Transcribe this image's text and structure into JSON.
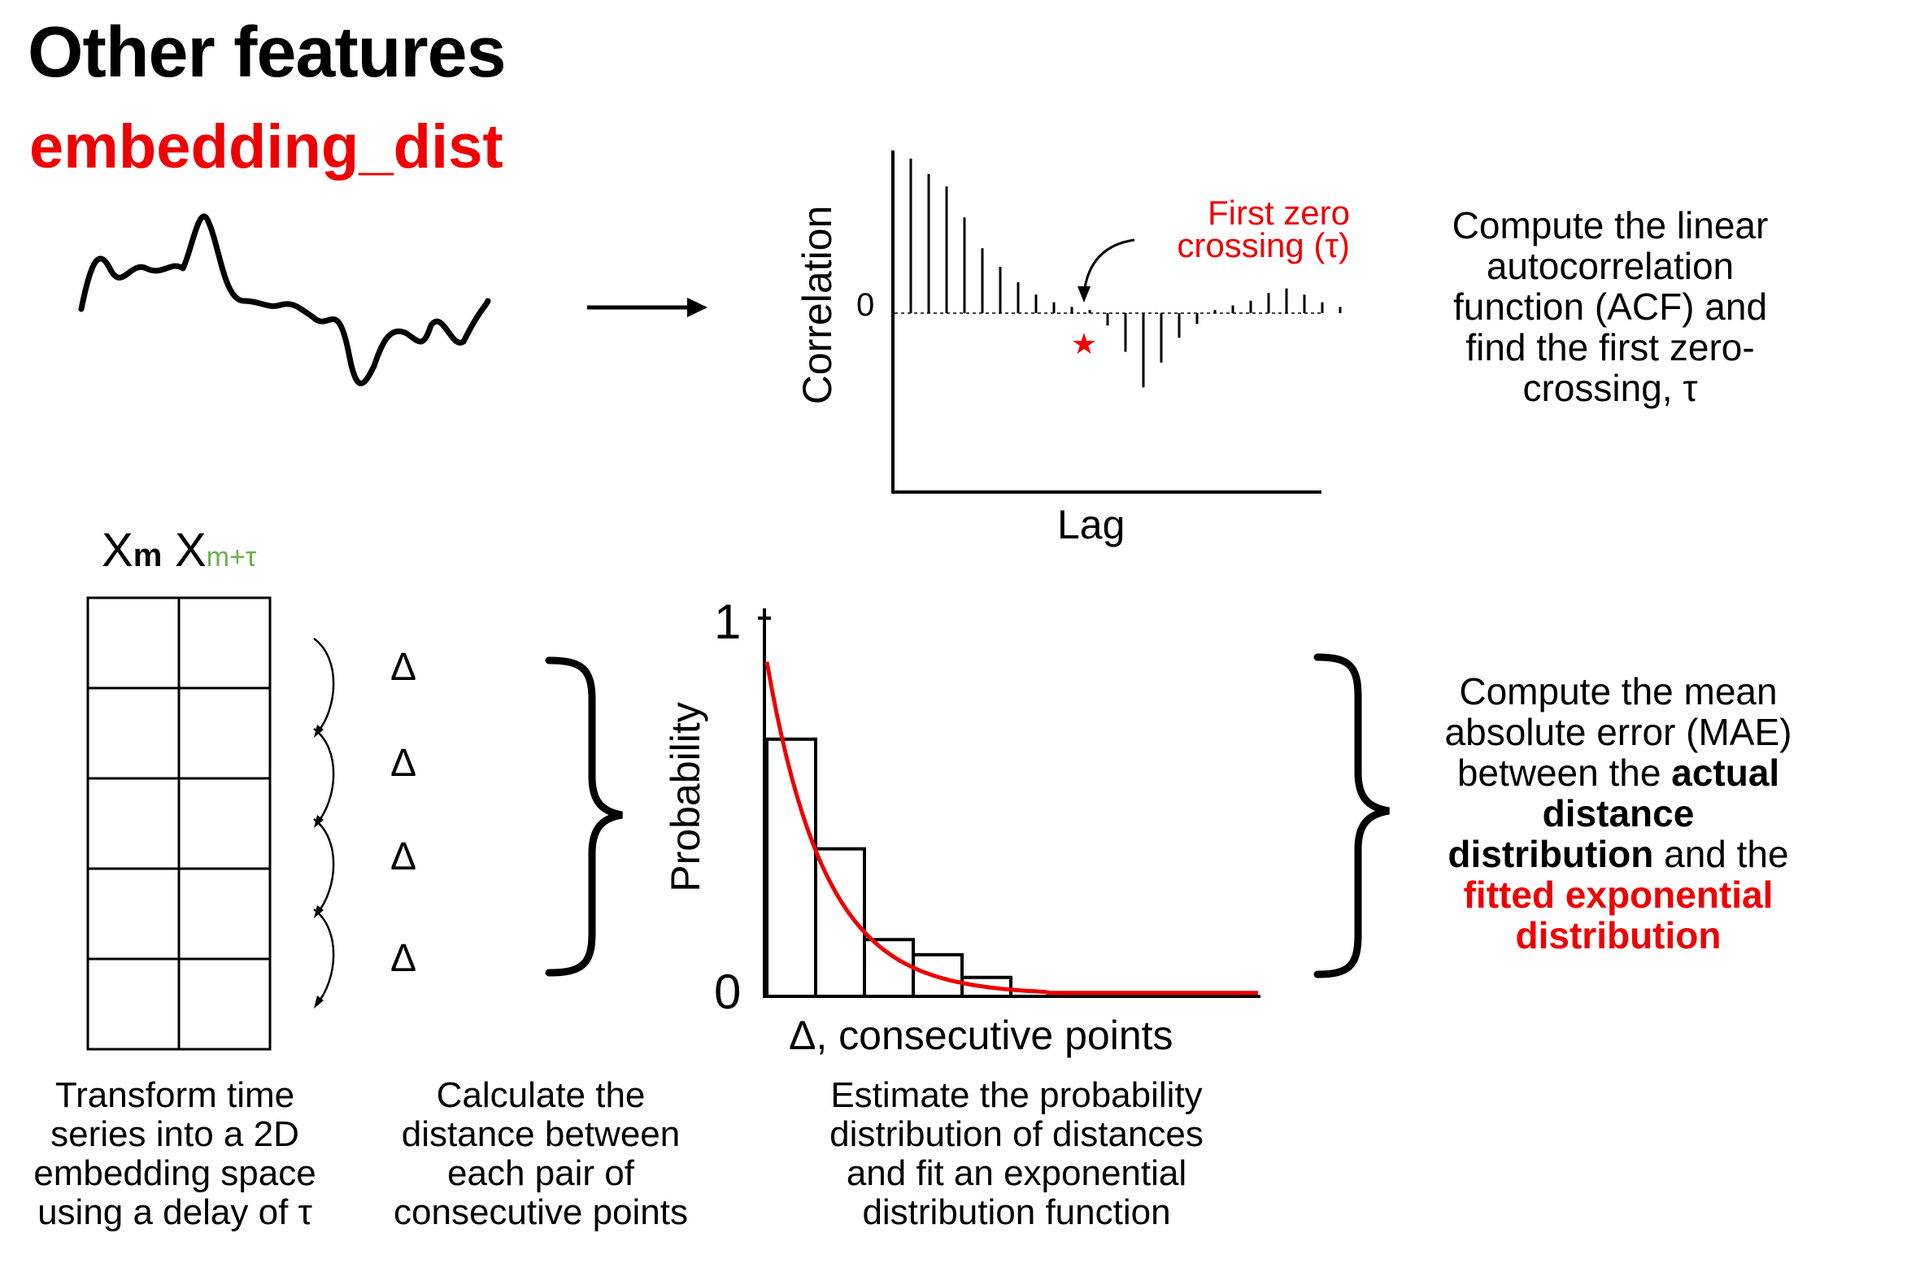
{
  "header": {
    "title": "Other features",
    "subtitle": "embedding_dist"
  },
  "acf_panel": {
    "y_label": "Correlation",
    "x_label": "Lag",
    "zero_tick": "0",
    "annotation_line1": "First zero",
    "annotation_line2": "crossing (τ)",
    "description_lines": [
      "Compute the linear",
      "autocorrelation",
      "function (ACF) and",
      "find the first zero-",
      "crossing, τ"
    ],
    "acf_values": [
      1.0,
      0.9,
      0.82,
      0.62,
      0.42,
      0.3,
      0.2,
      0.12,
      0.07,
      0.04,
      0.02,
      -0.08,
      -0.25,
      -0.48,
      -0.32,
      -0.16,
      -0.07,
      0.02,
      0.05,
      0.08,
      0.13,
      0.16,
      0.12,
      0.07,
      0.04
    ],
    "first_zero_crossing_index": 10
  },
  "embedding": {
    "col1_main": "X",
    "col1_sub": "m",
    "col2_main": "X",
    "col2_sub": "m+τ",
    "rows": 5,
    "delta_symbol": "Δ",
    "caption_lines": [
      "Transform time",
      "series into a 2D",
      "embedding space",
      "using a delay of τ"
    ]
  },
  "distance": {
    "caption_lines": [
      "Calculate the",
      "distance between",
      "each pair of",
      "consecutive points"
    ]
  },
  "histogram": {
    "y_label": "Probability",
    "x_label": "Δ, consecutive points",
    "tick_one": "1",
    "tick_zero": "0",
    "bins": [
      0.68,
      0.39,
      0.15,
      0.11,
      0.05
    ],
    "caption_lines": [
      "Estimate the probability",
      "distribution of distances",
      "and fit an exponential",
      "distribution function"
    ]
  },
  "mae": {
    "line1": "Compute the mean",
    "line2": "absolute error (MAE)",
    "line3_a": "between the ",
    "line3_b": "actual",
    "line4": "distance",
    "line5_a": "distribution",
    "line5_b": " and the",
    "line6": "fitted exponential",
    "line7": "distribution"
  },
  "colors": {
    "accent": "#ee0000",
    "subscript_green": "#6ab04c",
    "ink": "#000000"
  }
}
